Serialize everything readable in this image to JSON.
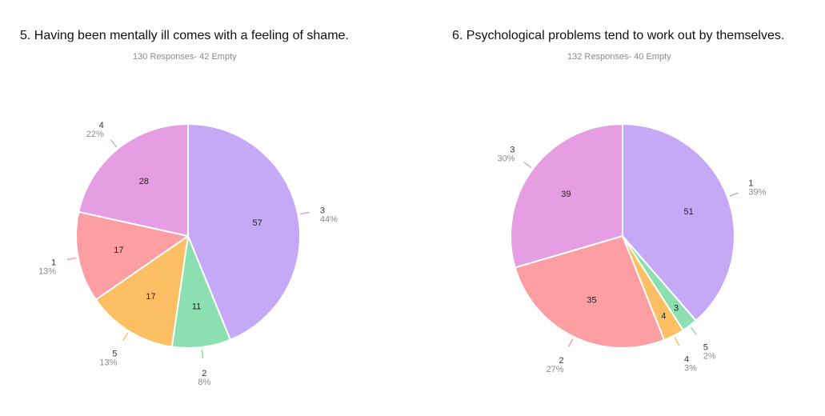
{
  "chart_data": [
    {
      "type": "pie",
      "title": "5. Having been mentally ill comes with a feeling of shame.",
      "subtitle": "130 Responses- 42 Empty",
      "slices": [
        {
          "label": "3",
          "value": 57,
          "percent": "44%",
          "color": "#c5a8f6"
        },
        {
          "label": "2",
          "value": 11,
          "percent": "8%",
          "color": "#8cdfb0"
        },
        {
          "label": "5",
          "value": 17,
          "percent": "13%",
          "color": "#fdbf63"
        },
        {
          "label": "1",
          "value": 17,
          "percent": "13%",
          "color": "#fd9ea3"
        },
        {
          "label": "4",
          "value": 28,
          "percent": "22%",
          "color": "#e69ee3"
        }
      ]
    },
    {
      "type": "pie",
      "title": "6. Psychological problems tend to work out by themselves.",
      "subtitle": "132 Responses- 40 Empty",
      "slices": [
        {
          "label": "1",
          "value": 51,
          "percent": "39%",
          "color": "#c5a8f6"
        },
        {
          "label": "5",
          "value": 3,
          "percent": "2%",
          "color": "#8cdfb0"
        },
        {
          "label": "4",
          "value": 4,
          "percent": "3%",
          "color": "#fdbf63"
        },
        {
          "label": "2",
          "value": 35,
          "percent": "27%",
          "color": "#fd9ea3"
        },
        {
          "label": "3",
          "value": 39,
          "percent": "30%",
          "color": "#e69ee3"
        }
      ]
    }
  ]
}
